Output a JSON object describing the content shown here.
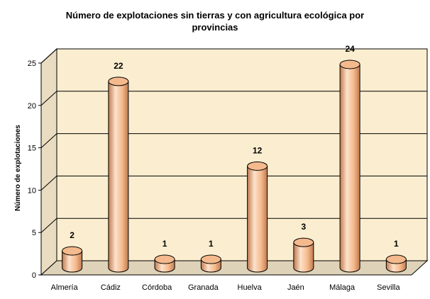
{
  "chart_data": {
    "type": "bar",
    "title_line1": "Número de explotaciones sin  tierras y con agricultura ecológica por",
    "title_line2": "provincias",
    "xlabel": "",
    "ylabel": "Número de explotaciones",
    "ylim": [
      0,
      25
    ],
    "yticks": [
      "0",
      "5",
      "10",
      "15",
      "20",
      "25"
    ],
    "categories": [
      "Almería",
      "Cádiz",
      "Córdoba",
      "Granada",
      "Huelva",
      "Jaén",
      "Málaga",
      "Sevilla"
    ],
    "values": [
      2,
      22,
      1,
      1,
      12,
      3,
      24,
      1
    ],
    "value_labels": [
      "2",
      "22",
      "1",
      "1",
      "12",
      "3",
      "24",
      "1"
    ],
    "grid": true,
    "legend": "none",
    "colors": {
      "bar": "#f4b98c",
      "bar_dark": "#c07a4e",
      "bar_light": "#fde2cb",
      "plot_bg": "#fbeed0",
      "wall_side": "#e9dcc0",
      "floor": "#ded2b8"
    }
  }
}
